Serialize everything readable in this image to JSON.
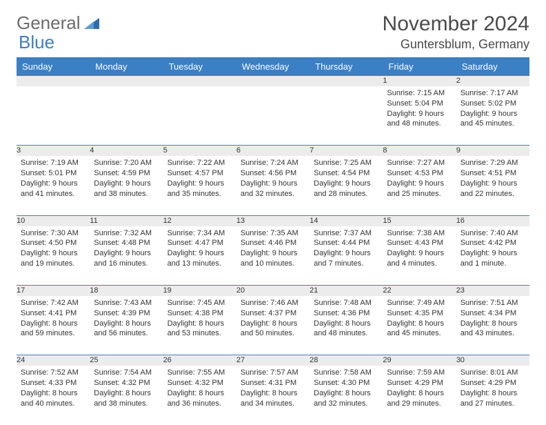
{
  "logo": {
    "text1": "General",
    "text2": "Blue"
  },
  "title": "November 2024",
  "location": "Guntersblum, Germany",
  "colors": {
    "header_bg": "#3b7fc4",
    "header_text": "#ffffff",
    "daynum_bg": "#ececec",
    "border": "#3b7fc4",
    "text": "#333333",
    "logo_gray": "#6b6b6b",
    "logo_blue": "#3b7fc4"
  },
  "day_headers": [
    "Sunday",
    "Monday",
    "Tuesday",
    "Wednesday",
    "Thursday",
    "Friday",
    "Saturday"
  ],
  "weeks": [
    [
      null,
      null,
      null,
      null,
      null,
      {
        "n": "1",
        "sr": "Sunrise: 7:15 AM",
        "ss": "Sunset: 5:04 PM",
        "dl1": "Daylight: 9 hours",
        "dl2": "and 48 minutes."
      },
      {
        "n": "2",
        "sr": "Sunrise: 7:17 AM",
        "ss": "Sunset: 5:02 PM",
        "dl1": "Daylight: 9 hours",
        "dl2": "and 45 minutes."
      }
    ],
    [
      {
        "n": "3",
        "sr": "Sunrise: 7:19 AM",
        "ss": "Sunset: 5:01 PM",
        "dl1": "Daylight: 9 hours",
        "dl2": "and 41 minutes."
      },
      {
        "n": "4",
        "sr": "Sunrise: 7:20 AM",
        "ss": "Sunset: 4:59 PM",
        "dl1": "Daylight: 9 hours",
        "dl2": "and 38 minutes."
      },
      {
        "n": "5",
        "sr": "Sunrise: 7:22 AM",
        "ss": "Sunset: 4:57 PM",
        "dl1": "Daylight: 9 hours",
        "dl2": "and 35 minutes."
      },
      {
        "n": "6",
        "sr": "Sunrise: 7:24 AM",
        "ss": "Sunset: 4:56 PM",
        "dl1": "Daylight: 9 hours",
        "dl2": "and 32 minutes."
      },
      {
        "n": "7",
        "sr": "Sunrise: 7:25 AM",
        "ss": "Sunset: 4:54 PM",
        "dl1": "Daylight: 9 hours",
        "dl2": "and 28 minutes."
      },
      {
        "n": "8",
        "sr": "Sunrise: 7:27 AM",
        "ss": "Sunset: 4:53 PM",
        "dl1": "Daylight: 9 hours",
        "dl2": "and 25 minutes."
      },
      {
        "n": "9",
        "sr": "Sunrise: 7:29 AM",
        "ss": "Sunset: 4:51 PM",
        "dl1": "Daylight: 9 hours",
        "dl2": "and 22 minutes."
      }
    ],
    [
      {
        "n": "10",
        "sr": "Sunrise: 7:30 AM",
        "ss": "Sunset: 4:50 PM",
        "dl1": "Daylight: 9 hours",
        "dl2": "and 19 minutes."
      },
      {
        "n": "11",
        "sr": "Sunrise: 7:32 AM",
        "ss": "Sunset: 4:48 PM",
        "dl1": "Daylight: 9 hours",
        "dl2": "and 16 minutes."
      },
      {
        "n": "12",
        "sr": "Sunrise: 7:34 AM",
        "ss": "Sunset: 4:47 PM",
        "dl1": "Daylight: 9 hours",
        "dl2": "and 13 minutes."
      },
      {
        "n": "13",
        "sr": "Sunrise: 7:35 AM",
        "ss": "Sunset: 4:46 PM",
        "dl1": "Daylight: 9 hours",
        "dl2": "and 10 minutes."
      },
      {
        "n": "14",
        "sr": "Sunrise: 7:37 AM",
        "ss": "Sunset: 4:44 PM",
        "dl1": "Daylight: 9 hours",
        "dl2": "and 7 minutes."
      },
      {
        "n": "15",
        "sr": "Sunrise: 7:38 AM",
        "ss": "Sunset: 4:43 PM",
        "dl1": "Daylight: 9 hours",
        "dl2": "and 4 minutes."
      },
      {
        "n": "16",
        "sr": "Sunrise: 7:40 AM",
        "ss": "Sunset: 4:42 PM",
        "dl1": "Daylight: 9 hours",
        "dl2": "and 1 minute."
      }
    ],
    [
      {
        "n": "17",
        "sr": "Sunrise: 7:42 AM",
        "ss": "Sunset: 4:41 PM",
        "dl1": "Daylight: 8 hours",
        "dl2": "and 59 minutes."
      },
      {
        "n": "18",
        "sr": "Sunrise: 7:43 AM",
        "ss": "Sunset: 4:39 PM",
        "dl1": "Daylight: 8 hours",
        "dl2": "and 56 minutes."
      },
      {
        "n": "19",
        "sr": "Sunrise: 7:45 AM",
        "ss": "Sunset: 4:38 PM",
        "dl1": "Daylight: 8 hours",
        "dl2": "and 53 minutes."
      },
      {
        "n": "20",
        "sr": "Sunrise: 7:46 AM",
        "ss": "Sunset: 4:37 PM",
        "dl1": "Daylight: 8 hours",
        "dl2": "and 50 minutes."
      },
      {
        "n": "21",
        "sr": "Sunrise: 7:48 AM",
        "ss": "Sunset: 4:36 PM",
        "dl1": "Daylight: 8 hours",
        "dl2": "and 48 minutes."
      },
      {
        "n": "22",
        "sr": "Sunrise: 7:49 AM",
        "ss": "Sunset: 4:35 PM",
        "dl1": "Daylight: 8 hours",
        "dl2": "and 45 minutes."
      },
      {
        "n": "23",
        "sr": "Sunrise: 7:51 AM",
        "ss": "Sunset: 4:34 PM",
        "dl1": "Daylight: 8 hours",
        "dl2": "and 43 minutes."
      }
    ],
    [
      {
        "n": "24",
        "sr": "Sunrise: 7:52 AM",
        "ss": "Sunset: 4:33 PM",
        "dl1": "Daylight: 8 hours",
        "dl2": "and 40 minutes."
      },
      {
        "n": "25",
        "sr": "Sunrise: 7:54 AM",
        "ss": "Sunset: 4:32 PM",
        "dl1": "Daylight: 8 hours",
        "dl2": "and 38 minutes."
      },
      {
        "n": "26",
        "sr": "Sunrise: 7:55 AM",
        "ss": "Sunset: 4:32 PM",
        "dl1": "Daylight: 8 hours",
        "dl2": "and 36 minutes."
      },
      {
        "n": "27",
        "sr": "Sunrise: 7:57 AM",
        "ss": "Sunset: 4:31 PM",
        "dl1": "Daylight: 8 hours",
        "dl2": "and 34 minutes."
      },
      {
        "n": "28",
        "sr": "Sunrise: 7:58 AM",
        "ss": "Sunset: 4:30 PM",
        "dl1": "Daylight: 8 hours",
        "dl2": "and 32 minutes."
      },
      {
        "n": "29",
        "sr": "Sunrise: 7:59 AM",
        "ss": "Sunset: 4:29 PM",
        "dl1": "Daylight: 8 hours",
        "dl2": "and 29 minutes."
      },
      {
        "n": "30",
        "sr": "Sunrise: 8:01 AM",
        "ss": "Sunset: 4:29 PM",
        "dl1": "Daylight: 8 hours",
        "dl2": "and 27 minutes."
      }
    ]
  ]
}
